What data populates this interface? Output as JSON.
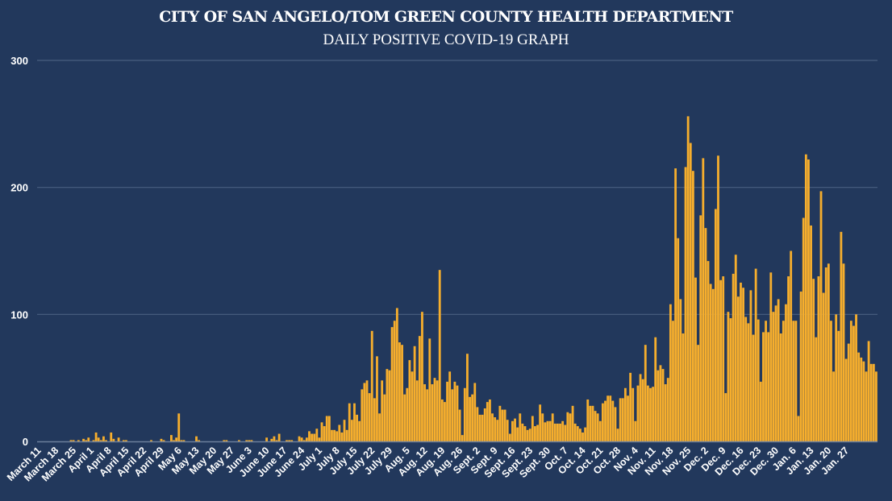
{
  "chart_data": {
    "type": "bar",
    "title": "CITY OF SAN ANGELO/TOM GREEN COUNTY HEALTH DEPARTMENT",
    "subtitle": "DAILY POSITIVE COVID-19 GRAPH",
    "xlabel": "",
    "ylabel": "",
    "ylim": [
      0,
      300
    ],
    "yticks": [
      0,
      100,
      200,
      300
    ],
    "grid": true,
    "colors": {
      "bar": "#f6ae2d",
      "background": "#22385c",
      "grid": "#4a5f80",
      "text": "#ffffff"
    },
    "xtick_labels": [
      "March 11",
      "March 18",
      "March 25",
      "April 1",
      "April 8",
      "April 15",
      "April 22",
      "April 29",
      "May 6",
      "May 13",
      "May 20",
      "May 27",
      "June 3",
      "June 10",
      "June 17",
      "June 24",
      "July 1",
      "July 8",
      "July 15",
      "July 22",
      "July 29",
      "Aug. 5",
      "Aug. 12",
      "Aug. 19",
      "Aug. 26",
      "Sept. 2",
      "Sept. 9",
      "Sept. 16",
      "Sept. 23",
      "Sept. 30",
      "Oct. 7",
      "Oct. 14",
      "Oct. 21",
      "Oct. 28",
      "Nov. 4",
      "Nov. 11",
      "Nov. 18",
      "Nov. 25",
      "Dec. 2",
      "Dec. 9",
      "Dec. 16",
      "Dec. 23",
      "Dec. 30",
      "Jan. 6",
      "Jan. 13",
      "Jan. 20",
      "Jan. 27"
    ],
    "x_start": "March 11",
    "x_end": "Jan. 27",
    "values": [
      0,
      0,
      0,
      0,
      0,
      0,
      0,
      0,
      0,
      0,
      0,
      0,
      0,
      1,
      1,
      0,
      1,
      0,
      2,
      1,
      3,
      0,
      1,
      7,
      3,
      1,
      4,
      1,
      0,
      7,
      2,
      0,
      3,
      0,
      1,
      1,
      0,
      0,
      0,
      0,
      0,
      0,
      0,
      0,
      0,
      1,
      0,
      0,
      0,
      2,
      1,
      0,
      0,
      5,
      1,
      3,
      22,
      1,
      1,
      0,
      0,
      0,
      0,
      4,
      1,
      0,
      0,
      0,
      0,
      0,
      0,
      0,
      0,
      0,
      1,
      1,
      0,
      0,
      0,
      0,
      1,
      0,
      0,
      1,
      1,
      1,
      0,
      0,
      0,
      0,
      0,
      3,
      0,
      2,
      4,
      1,
      6,
      0,
      0,
      1,
      1,
      1,
      0,
      0,
      4,
      3,
      1,
      3,
      8,
      6,
      6,
      10,
      3,
      15,
      12,
      20,
      20,
      9,
      9,
      8,
      13,
      7,
      17,
      9,
      30,
      17,
      30,
      21,
      16,
      41,
      46,
      48,
      38,
      87,
      34,
      67,
      22,
      48,
      37,
      57,
      56,
      90,
      95,
      105,
      78,
      76,
      37,
      42,
      64,
      55,
      75,
      48,
      83,
      102,
      45,
      41,
      81,
      45,
      50,
      48,
      135,
      33,
      31,
      47,
      55,
      41,
      47,
      44,
      25,
      5,
      42,
      69,
      35,
      37,
      46,
      27,
      21,
      21,
      26,
      31,
      33,
      22,
      19,
      17,
      28,
      25,
      25,
      17,
      6,
      16,
      18,
      11,
      22,
      14,
      12,
      9,
      10,
      20,
      12,
      13,
      29,
      22,
      15,
      16,
      16,
      22,
      14,
      14,
      14,
      16,
      13,
      23,
      22,
      28,
      14,
      12,
      10,
      7,
      11,
      33,
      28,
      28,
      24,
      22,
      16,
      30,
      32,
      36,
      36,
      32,
      27,
      10,
      34,
      34,
      42,
      36,
      54,
      42,
      16,
      44,
      53,
      49,
      76,
      44,
      42,
      43,
      82,
      56,
      60,
      57,
      45,
      50,
      108,
      95,
      215,
      160,
      112,
      85,
      216,
      256,
      235,
      213,
      129,
      76,
      178,
      223,
      168,
      142,
      124,
      120,
      183,
      225,
      127,
      130,
      38,
      102,
      97,
      132,
      147,
      114,
      125,
      121,
      98,
      93,
      119,
      84,
      136,
      96,
      47,
      86,
      95,
      86,
      133,
      102,
      107,
      112,
      85,
      95,
      108,
      130,
      150,
      95,
      95,
      20,
      118,
      176,
      226,
      222,
      170,
      128,
      82,
      130,
      197,
      117,
      137,
      140,
      95,
      55,
      100,
      87,
      165,
      140,
      65,
      77,
      95,
      91,
      100,
      70,
      66,
      63,
      55,
      79,
      61,
      61,
      55
    ]
  }
}
